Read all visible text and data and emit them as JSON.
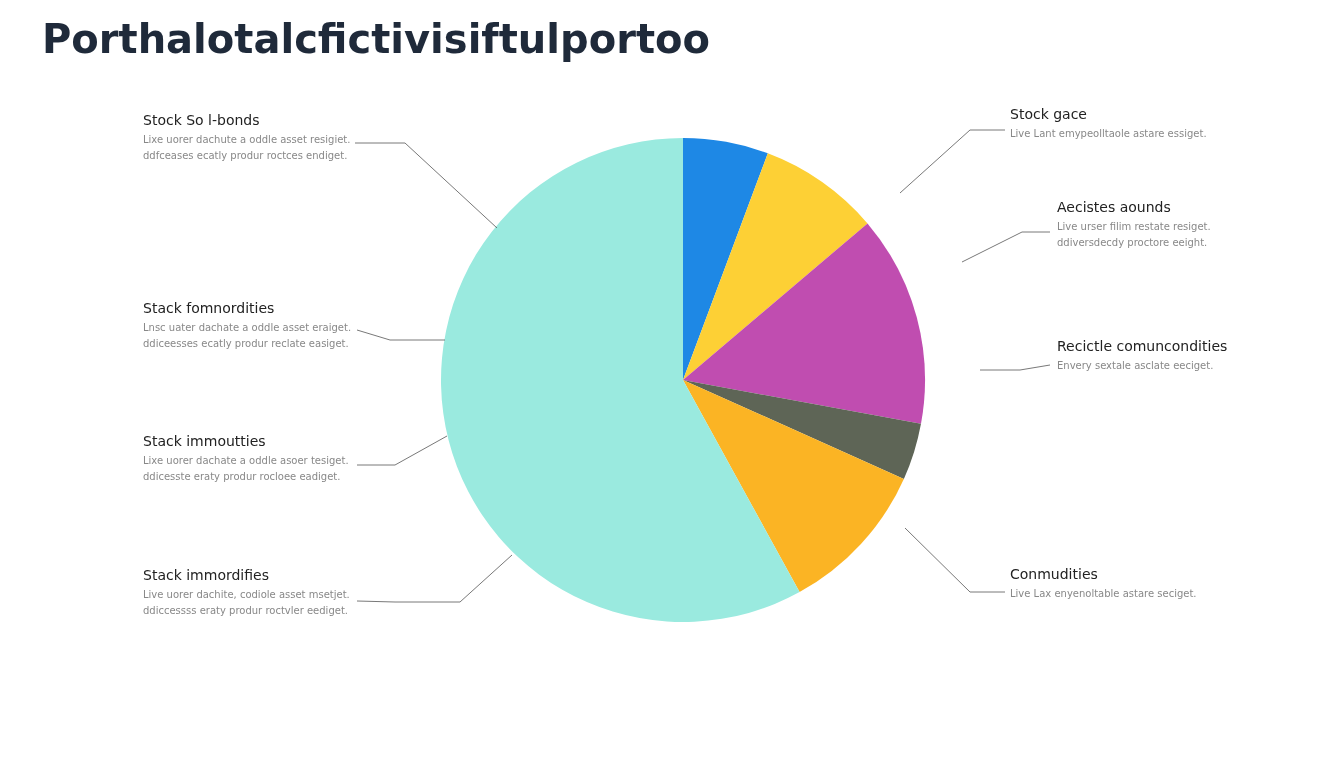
{
  "chart_data": {
    "type": "pie",
    "title": "Porthalotalcfictivisiftulportoo",
    "categories": [
      null,
      null,
      null,
      null,
      null,
      null
    ],
    "values": [
      5.7,
      8.1,
      14.1,
      3.8,
      10.3,
      58.0
    ],
    "colors": [
      "#1e88e5",
      "#fdd035",
      "#c04db0",
      "#5e6556",
      "#fbb424",
      "#9aeadf"
    ],
    "annotations": [
      "Stock So l-bonds\nLixe uorer dachute a oddle asset resigiet.\nddfceases ecatly produr roctces endiget.",
      "Stack fomnordities\nLnsc uater dachate a oddle asset eraiget.\nddiceesses ecatly produr reclate easiget.",
      "Stack immoutties\nLixe uorer dachate a oddle asoer tesiget.\nddicesste eraty produr rocloee eadiget.",
      "Stack immordifies\nLive uorer dachite, codiole asset msetjet.\nddiccessss eraty produr roctvler eediget.",
      "Stock gace\nLive Lant emypeolltaole astare essiget.",
      "Aecistes aounds\nLive urser filim restate resiget.\nddiversdecdy proctore eeight.",
      "Recictle comuncondities\nEnvery sextale asclate eeciget.",
      "Conmudities\nLive Lax enyenoltable astare seciget."
    ]
  }
}
